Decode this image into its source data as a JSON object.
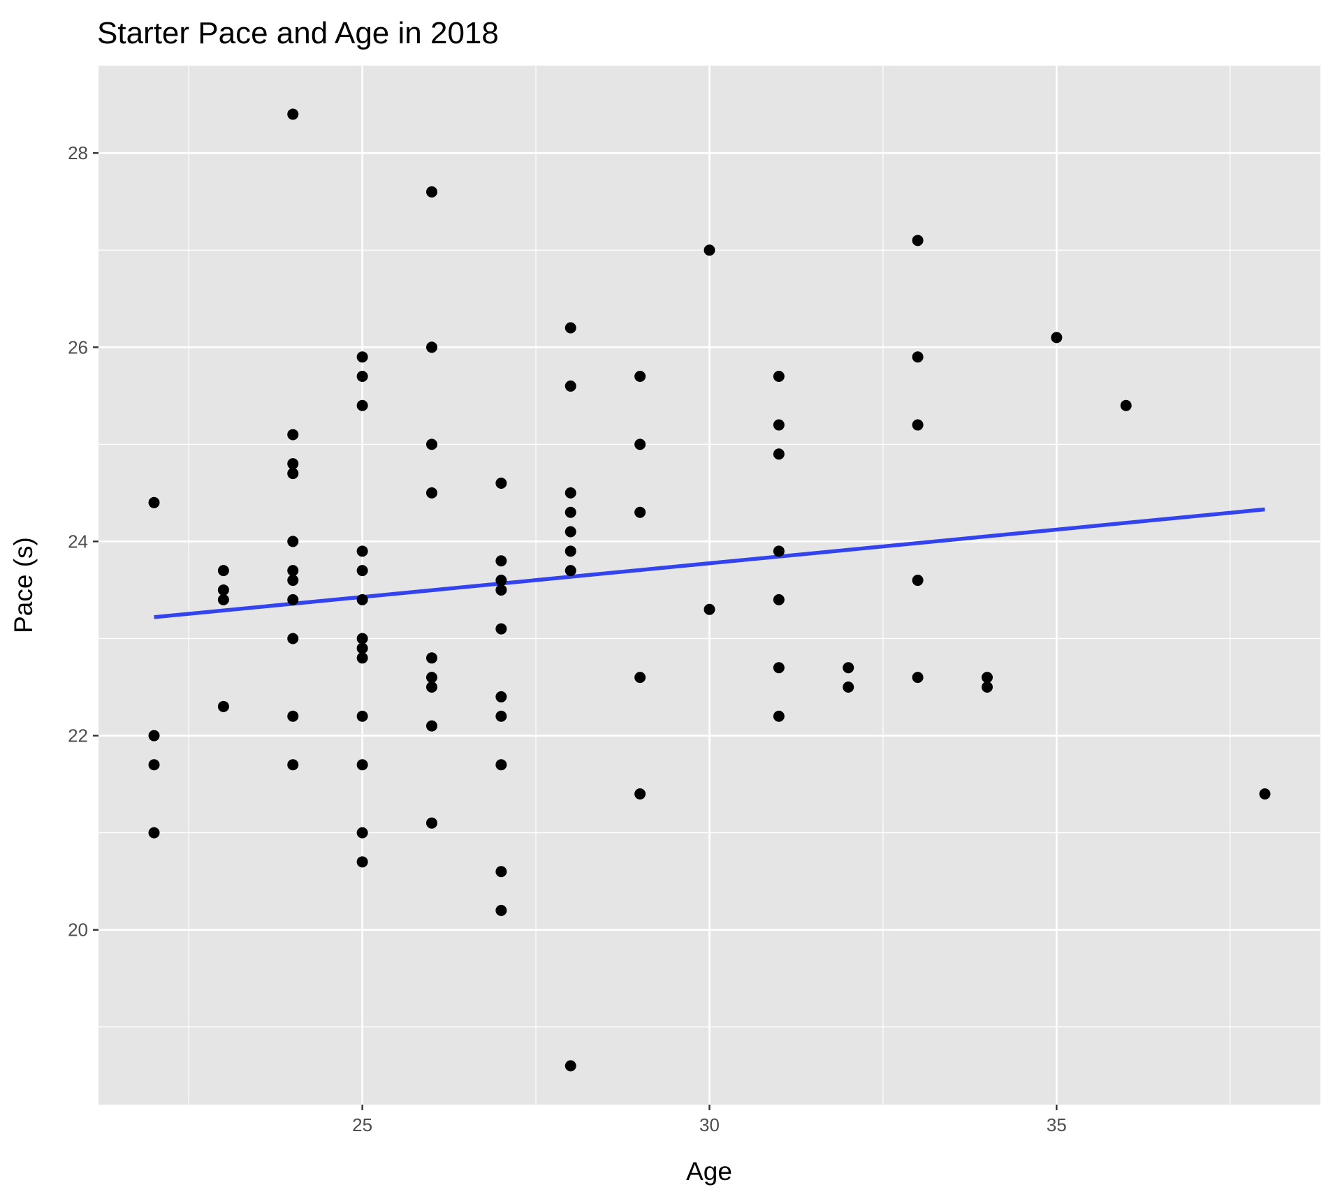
{
  "chart_data": {
    "type": "scatter",
    "title": "Starter Pace and Age in 2018",
    "xlabel": "Age",
    "ylabel": "Pace (s)",
    "xlim": [
      21.2,
      38.8
    ],
    "ylim": [
      18.2,
      28.9
    ],
    "x_ticks": [
      25,
      30,
      35
    ],
    "x_tick_labels": [
      "25",
      "30",
      "35"
    ],
    "y_ticks": [
      20,
      22,
      24,
      26,
      28
    ],
    "y_tick_labels": [
      "20",
      "22",
      "24",
      "26",
      "28"
    ],
    "x_minor_ticks": [
      22.5,
      27.5,
      32.5,
      37.5
    ],
    "y_minor_ticks": [
      19,
      21,
      23,
      25,
      27
    ],
    "grid": true,
    "background_color": "#e5e5e5",
    "point_color": "#000000",
    "trend_color": "#3344ee",
    "points": [
      {
        "x": 22,
        "y": 24.4
      },
      {
        "x": 22,
        "y": 22.0
      },
      {
        "x": 22,
        "y": 21.7
      },
      {
        "x": 22,
        "y": 21.0
      },
      {
        "x": 23,
        "y": 23.7
      },
      {
        "x": 23,
        "y": 23.5
      },
      {
        "x": 23,
        "y": 23.4
      },
      {
        "x": 23,
        "y": 22.3
      },
      {
        "x": 24,
        "y": 28.4
      },
      {
        "x": 24,
        "y": 25.1
      },
      {
        "x": 24,
        "y": 24.8
      },
      {
        "x": 24,
        "y": 24.7
      },
      {
        "x": 24,
        "y": 24.0
      },
      {
        "x": 24,
        "y": 23.7
      },
      {
        "x": 24,
        "y": 23.6
      },
      {
        "x": 24,
        "y": 23.4
      },
      {
        "x": 24,
        "y": 23.0
      },
      {
        "x": 24,
        "y": 22.2
      },
      {
        "x": 24,
        "y": 21.7
      },
      {
        "x": 25,
        "y": 25.9
      },
      {
        "x": 25,
        "y": 25.7
      },
      {
        "x": 25,
        "y": 25.4
      },
      {
        "x": 25,
        "y": 23.9
      },
      {
        "x": 25,
        "y": 23.7
      },
      {
        "x": 25,
        "y": 23.4
      },
      {
        "x": 25,
        "y": 23.0
      },
      {
        "x": 25,
        "y": 22.9
      },
      {
        "x": 25,
        "y": 22.8
      },
      {
        "x": 25,
        "y": 22.2
      },
      {
        "x": 25,
        "y": 21.7
      },
      {
        "x": 25,
        "y": 21.0
      },
      {
        "x": 25,
        "y": 20.7
      },
      {
        "x": 26,
        "y": 27.6
      },
      {
        "x": 26,
        "y": 26.0
      },
      {
        "x": 26,
        "y": 25.0
      },
      {
        "x": 26,
        "y": 24.5
      },
      {
        "x": 26,
        "y": 22.8
      },
      {
        "x": 26,
        "y": 22.6
      },
      {
        "x": 26,
        "y": 22.5
      },
      {
        "x": 26,
        "y": 22.1
      },
      {
        "x": 26,
        "y": 21.1
      },
      {
        "x": 27,
        "y": 24.6
      },
      {
        "x": 27,
        "y": 23.8
      },
      {
        "x": 27,
        "y": 23.6
      },
      {
        "x": 27,
        "y": 23.5
      },
      {
        "x": 27,
        "y": 23.1
      },
      {
        "x": 27,
        "y": 22.4
      },
      {
        "x": 27,
        "y": 22.2
      },
      {
        "x": 27,
        "y": 21.7
      },
      {
        "x": 27,
        "y": 20.6
      },
      {
        "x": 27,
        "y": 20.2
      },
      {
        "x": 28,
        "y": 26.2
      },
      {
        "x": 28,
        "y": 25.6
      },
      {
        "x": 28,
        "y": 24.5
      },
      {
        "x": 28,
        "y": 24.3
      },
      {
        "x": 28,
        "y": 24.1
      },
      {
        "x": 28,
        "y": 23.9
      },
      {
        "x": 28,
        "y": 23.7
      },
      {
        "x": 28,
        "y": 18.6
      },
      {
        "x": 29,
        "y": 25.7
      },
      {
        "x": 29,
        "y": 25.0
      },
      {
        "x": 29,
        "y": 24.3
      },
      {
        "x": 29,
        "y": 22.6
      },
      {
        "x": 29,
        "y": 21.4
      },
      {
        "x": 30,
        "y": 27.0
      },
      {
        "x": 30,
        "y": 23.3
      },
      {
        "x": 31,
        "y": 25.7
      },
      {
        "x": 31,
        "y": 25.2
      },
      {
        "x": 31,
        "y": 24.9
      },
      {
        "x": 31,
        "y": 23.9
      },
      {
        "x": 31,
        "y": 23.4
      },
      {
        "x": 31,
        "y": 22.7
      },
      {
        "x": 31,
        "y": 22.2
      },
      {
        "x": 32,
        "y": 22.7
      },
      {
        "x": 32,
        "y": 22.5
      },
      {
        "x": 33,
        "y": 27.1
      },
      {
        "x": 33,
        "y": 25.9
      },
      {
        "x": 33,
        "y": 25.2
      },
      {
        "x": 33,
        "y": 23.6
      },
      {
        "x": 33,
        "y": 22.6
      },
      {
        "x": 34,
        "y": 22.6
      },
      {
        "x": 34,
        "y": 22.5
      },
      {
        "x": 35,
        "y": 26.1
      },
      {
        "x": 36,
        "y": 25.4
      },
      {
        "x": 38,
        "y": 21.4
      }
    ],
    "trend_line": {
      "x": [
        22,
        38
      ],
      "y": [
        23.22,
        24.33
      ]
    }
  }
}
